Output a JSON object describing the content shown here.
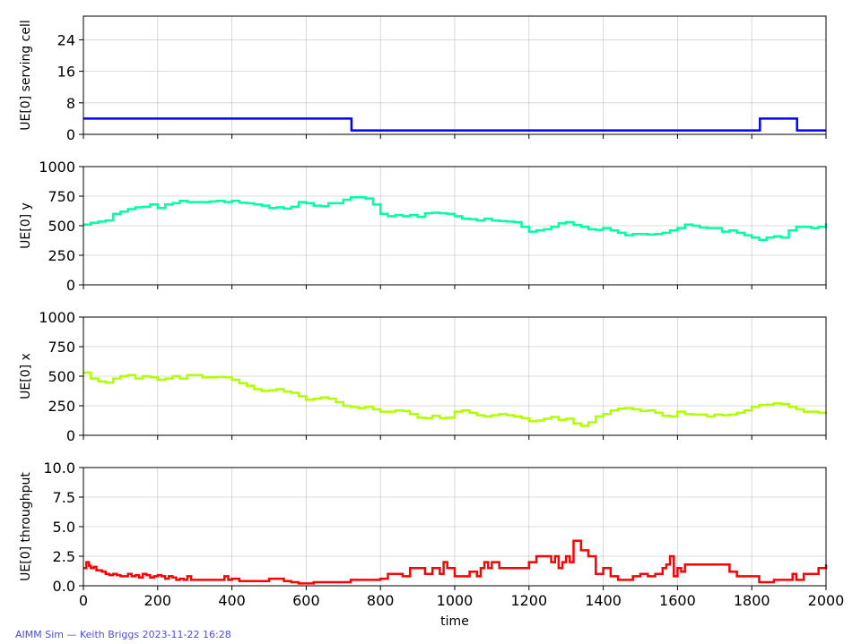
{
  "footer": "AIMM Sim — Keith Briggs 2023-11-22 16:28",
  "xlabel": "time",
  "x_ticks": [
    0,
    200,
    400,
    600,
    800,
    1000,
    1200,
    1400,
    1600,
    1800,
    2000
  ],
  "xlim": [
    0,
    2000
  ],
  "chart_data": [
    {
      "type": "line",
      "ylabel": "UE[0] serving cell",
      "ylim": [
        0,
        30
      ],
      "y_ticks": [
        0,
        8,
        16,
        24
      ],
      "y_tick_labels": [
        "0",
        "8",
        "16",
        "24"
      ],
      "grid": true,
      "step": true,
      "color": "#0000ff",
      "series": [
        {
          "x": [
            0,
            722,
            722,
            1822,
            1822,
            1922,
            1922,
            2000
          ],
          "y": [
            4,
            4,
            1,
            1,
            4,
            4,
            1,
            1
          ]
        }
      ]
    },
    {
      "type": "line",
      "ylabel": "UE[0] y",
      "ylim": [
        0,
        1000
      ],
      "y_ticks": [
        0,
        250,
        500,
        750,
        1000
      ],
      "y_tick_labels": [
        "0",
        "250",
        "500",
        "750",
        "1000"
      ],
      "grid": true,
      "step": true,
      "color": "#00ffa0",
      "series": [
        {
          "x": [
            0,
            20,
            40,
            60,
            80,
            100,
            120,
            140,
            160,
            180,
            200,
            220,
            240,
            260,
            280,
            300,
            320,
            340,
            360,
            380,
            400,
            420,
            440,
            460,
            480,
            500,
            520,
            540,
            560,
            580,
            600,
            620,
            640,
            660,
            680,
            700,
            720,
            740,
            760,
            780,
            800,
            820,
            840,
            860,
            880,
            900,
            920,
            940,
            960,
            980,
            1000,
            1020,
            1040,
            1060,
            1080,
            1100,
            1120,
            1140,
            1160,
            1180,
            1200,
            1220,
            1240,
            1260,
            1280,
            1300,
            1320,
            1340,
            1360,
            1380,
            1400,
            1420,
            1440,
            1460,
            1480,
            1500,
            1520,
            1540,
            1560,
            1580,
            1600,
            1620,
            1640,
            1660,
            1680,
            1700,
            1720,
            1740,
            1760,
            1780,
            1800,
            1820,
            1840,
            1860,
            1880,
            1900,
            1920,
            1940,
            1960,
            1980,
            2000
          ],
          "y": [
            510,
            525,
            535,
            545,
            600,
            620,
            640,
            655,
            660,
            680,
            650,
            680,
            690,
            710,
            700,
            700,
            700,
            705,
            710,
            700,
            710,
            695,
            690,
            680,
            670,
            650,
            655,
            645,
            660,
            700,
            690,
            670,
            665,
            690,
            690,
            720,
            740,
            740,
            730,
            680,
            600,
            580,
            590,
            580,
            590,
            575,
            605,
            610,
            605,
            600,
            580,
            560,
            555,
            545,
            560,
            545,
            540,
            535,
            530,
            490,
            450,
            460,
            470,
            490,
            520,
            530,
            505,
            490,
            470,
            465,
            480,
            460,
            440,
            420,
            430,
            430,
            425,
            430,
            440,
            460,
            480,
            510,
            500,
            485,
            480,
            480,
            450,
            460,
            440,
            420,
            400,
            380,
            400,
            410,
            400,
            460,
            490,
            490,
            480,
            490,
            520
          ]
        }
      ]
    },
    {
      "type": "line",
      "ylabel": "UE[0] x",
      "ylim": [
        0,
        1000
      ],
      "y_ticks": [
        0,
        250,
        500,
        750,
        1000
      ],
      "y_tick_labels": [
        "0",
        "250",
        "500",
        "750",
        "1000"
      ],
      "grid": true,
      "step": true,
      "color": "#b0ff00",
      "series": [
        {
          "x": [
            0,
            20,
            40,
            60,
            80,
            100,
            120,
            140,
            160,
            180,
            200,
            220,
            240,
            260,
            280,
            300,
            320,
            340,
            360,
            380,
            400,
            420,
            440,
            460,
            480,
            500,
            520,
            540,
            560,
            580,
            600,
            620,
            640,
            660,
            680,
            700,
            720,
            740,
            760,
            780,
            800,
            820,
            840,
            860,
            880,
            900,
            920,
            940,
            960,
            980,
            1000,
            1020,
            1040,
            1060,
            1080,
            1100,
            1120,
            1140,
            1160,
            1180,
            1200,
            1220,
            1240,
            1260,
            1280,
            1300,
            1320,
            1340,
            1360,
            1380,
            1400,
            1420,
            1440,
            1460,
            1480,
            1500,
            1520,
            1540,
            1560,
            1580,
            1600,
            1620,
            1640,
            1660,
            1680,
            1700,
            1720,
            1740,
            1760,
            1780,
            1800,
            1820,
            1840,
            1860,
            1880,
            1900,
            1920,
            1940,
            1960,
            1980,
            2000
          ],
          "y": [
            530,
            480,
            455,
            445,
            480,
            500,
            510,
            480,
            500,
            490,
            470,
            480,
            500,
            480,
            510,
            510,
            490,
            490,
            495,
            490,
            470,
            440,
            420,
            390,
            375,
            380,
            390,
            370,
            360,
            330,
            300,
            310,
            320,
            310,
            280,
            250,
            240,
            230,
            240,
            220,
            200,
            200,
            210,
            205,
            180,
            150,
            145,
            165,
            145,
            150,
            200,
            210,
            190,
            170,
            160,
            170,
            180,
            170,
            160,
            145,
            120,
            125,
            140,
            155,
            130,
            140,
            100,
            80,
            110,
            160,
            180,
            210,
            225,
            230,
            220,
            205,
            210,
            190,
            165,
            160,
            200,
            180,
            175,
            175,
            160,
            175,
            170,
            175,
            190,
            210,
            240,
            255,
            260,
            270,
            265,
            240,
            220,
            200,
            200,
            190,
            180
          ]
        }
      ]
    },
    {
      "type": "line",
      "ylabel": "UE[0] throughput",
      "ylim": [
        0,
        10
      ],
      "y_ticks": [
        0,
        2.5,
        5,
        7.5,
        10
      ],
      "y_tick_labels": [
        "0.0",
        "2.5",
        "5.0",
        "7.5",
        "10.0"
      ],
      "grid": true,
      "step": true,
      "color": "#ff0000",
      "series": [
        {
          "x": [
            0,
            8,
            15,
            20,
            28,
            35,
            50,
            60,
            70,
            80,
            90,
            100,
            120,
            130,
            140,
            150,
            160,
            170,
            180,
            190,
            200,
            210,
            220,
            230,
            240,
            250,
            260,
            270,
            280,
            290,
            300,
            320,
            340,
            360,
            380,
            390,
            400,
            420,
            440,
            460,
            480,
            500,
            520,
            540,
            560,
            580,
            600,
            620,
            640,
            660,
            680,
            700,
            720,
            740,
            760,
            780,
            800,
            820,
            840,
            860,
            880,
            900,
            920,
            940,
            960,
            970,
            980,
            1000,
            1020,
            1040,
            1060,
            1070,
            1080,
            1090,
            1100,
            1120,
            1140,
            1160,
            1180,
            1200,
            1220,
            1240,
            1250,
            1260,
            1270,
            1280,
            1290,
            1300,
            1310,
            1320,
            1340,
            1360,
            1380,
            1400,
            1420,
            1440,
            1460,
            1480,
            1500,
            1520,
            1540,
            1560,
            1570,
            1580,
            1590,
            1600,
            1610,
            1620,
            1640,
            1660,
            1680,
            1700,
            1720,
            1740,
            1760,
            1780,
            1800,
            1820,
            1840,
            1860,
            1880,
            1900,
            1910,
            1920,
            1940,
            1960,
            1980,
            2000
          ],
          "y": [
            1.5,
            2.0,
            1.7,
            1.5,
            1.6,
            1.3,
            1.2,
            1.0,
            0.9,
            1.0,
            0.9,
            0.8,
            1.0,
            0.8,
            0.9,
            0.7,
            1.0,
            0.9,
            0.7,
            0.8,
            0.9,
            0.8,
            0.6,
            0.8,
            0.7,
            0.5,
            0.6,
            0.5,
            0.8,
            0.5,
            0.5,
            0.5,
            0.5,
            0.5,
            0.8,
            0.5,
            0.6,
            0.4,
            0.4,
            0.4,
            0.4,
            0.6,
            0.6,
            0.4,
            0.3,
            0.2,
            0.2,
            0.3,
            0.3,
            0.3,
            0.3,
            0.3,
            0.5,
            0.5,
            0.5,
            0.5,
            0.6,
            1.0,
            1.0,
            0.8,
            1.5,
            1.5,
            1.0,
            1.5,
            1.0,
            2.0,
            1.5,
            0.8,
            0.8,
            1.2,
            0.8,
            1.5,
            2.0,
            1.5,
            2.0,
            1.5,
            1.5,
            1.5,
            1.5,
            2.0,
            2.5,
            2.5,
            2.5,
            2.0,
            2.5,
            1.5,
            2.0,
            2.5,
            2.0,
            3.8,
            3.0,
            2.5,
            1.0,
            1.5,
            0.8,
            0.5,
            0.5,
            0.8,
            1.0,
            0.8,
            1.0,
            1.5,
            1.8,
            2.5,
            0.8,
            1.5,
            1.2,
            1.8,
            1.8,
            1.8,
            1.8,
            1.8,
            1.8,
            1.2,
            0.8,
            0.8,
            0.8,
            0.3,
            0.3,
            0.5,
            0.5,
            0.5,
            1.0,
            0.5,
            1.0,
            1.0,
            1.5,
            1.8
          ]
        }
      ]
    }
  ]
}
